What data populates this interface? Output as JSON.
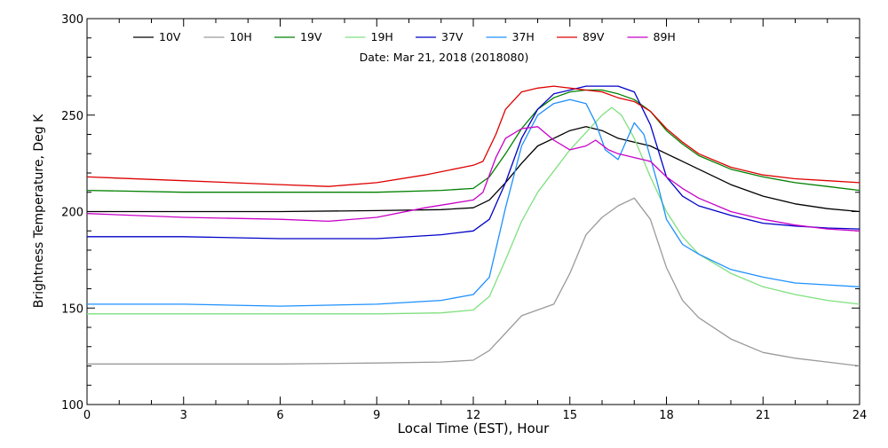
{
  "chart_data": {
    "type": "line",
    "subtitle": "Date: Mar 21, 2018 (2018080)",
    "xlabel": "Local Time (EST), Hour",
    "ylabel": "Brightness Temperature, Deg K",
    "xlim": [
      0,
      24
    ],
    "ylim": [
      100,
      300
    ],
    "x_ticks": [
      0,
      3,
      6,
      9,
      12,
      15,
      18,
      21,
      24
    ],
    "x_tick_labels": [
      "0",
      "3",
      "6",
      "9",
      "12",
      "15",
      "18",
      "21",
      "24"
    ],
    "y_ticks": [
      100,
      150,
      200,
      250,
      300
    ],
    "y_tick_labels": [
      "100",
      "150",
      "200",
      "250",
      "300"
    ],
    "grid": false,
    "legend_position": "top",
    "series": [
      {
        "name": "10V",
        "color": "#000000",
        "points": [
          [
            0,
            200
          ],
          [
            3,
            200
          ],
          [
            6,
            200
          ],
          [
            9,
            200.5
          ],
          [
            11,
            201
          ],
          [
            12,
            202
          ],
          [
            12.5,
            206
          ],
          [
            13,
            215
          ],
          [
            13.5,
            225
          ],
          [
            14,
            234
          ],
          [
            14.5,
            238
          ],
          [
            15,
            242
          ],
          [
            15.5,
            244
          ],
          [
            16,
            242
          ],
          [
            16.5,
            238
          ],
          [
            17,
            236
          ],
          [
            17.5,
            234
          ],
          [
            18,
            230
          ],
          [
            18.5,
            226
          ],
          [
            19,
            222
          ],
          [
            20,
            214
          ],
          [
            21,
            208
          ],
          [
            22,
            204
          ],
          [
            23,
            201.5
          ],
          [
            24,
            200
          ]
        ]
      },
      {
        "name": "10H",
        "color": "#9a9a9a",
        "points": [
          [
            0,
            121
          ],
          [
            3,
            121
          ],
          [
            6,
            121
          ],
          [
            9,
            121.5
          ],
          [
            11,
            122
          ],
          [
            12,
            123
          ],
          [
            12.5,
            128
          ],
          [
            13,
            137
          ],
          [
            13.5,
            146
          ],
          [
            14,
            149
          ],
          [
            14.5,
            152
          ],
          [
            15,
            168
          ],
          [
            15.5,
            188
          ],
          [
            16,
            197
          ],
          [
            16.5,
            203
          ],
          [
            17,
            207
          ],
          [
            17.5,
            196
          ],
          [
            18,
            171
          ],
          [
            18.5,
            154
          ],
          [
            19,
            145
          ],
          [
            20,
            134
          ],
          [
            21,
            127
          ],
          [
            22,
            124
          ],
          [
            23,
            122
          ],
          [
            24,
            120
          ]
        ]
      },
      {
        "name": "19V",
        "color": "#008000",
        "points": [
          [
            0,
            211
          ],
          [
            3,
            210
          ],
          [
            6,
            210
          ],
          [
            9,
            210
          ],
          [
            11,
            211
          ],
          [
            12,
            212
          ],
          [
            12.5,
            218
          ],
          [
            13,
            230
          ],
          [
            13.5,
            243
          ],
          [
            14,
            253
          ],
          [
            14.5,
            259
          ],
          [
            15,
            262
          ],
          [
            15.5,
            263
          ],
          [
            16,
            263
          ],
          [
            16.5,
            261
          ],
          [
            17,
            258
          ],
          [
            17.5,
            252
          ],
          [
            18,
            242
          ],
          [
            18.5,
            235
          ],
          [
            19,
            229
          ],
          [
            20,
            222
          ],
          [
            21,
            218
          ],
          [
            22,
            215
          ],
          [
            23,
            213
          ],
          [
            24,
            211
          ]
        ]
      },
      {
        "name": "19H",
        "color": "#7fe07f",
        "points": [
          [
            0,
            147
          ],
          [
            3,
            147
          ],
          [
            6,
            147
          ],
          [
            9,
            147
          ],
          [
            11,
            147.5
          ],
          [
            12,
            149
          ],
          [
            12.5,
            156
          ],
          [
            13,
            175
          ],
          [
            13.5,
            195
          ],
          [
            14,
            210
          ],
          [
            14.5,
            221
          ],
          [
            15,
            232
          ],
          [
            15.5,
            241
          ],
          [
            16,
            250
          ],
          [
            16.3,
            254
          ],
          [
            16.6,
            250
          ],
          [
            17,
            238
          ],
          [
            17.5,
            218
          ],
          [
            18,
            200
          ],
          [
            18.5,
            187
          ],
          [
            19,
            178
          ],
          [
            20,
            168
          ],
          [
            21,
            161
          ],
          [
            22,
            157
          ],
          [
            23,
            154
          ],
          [
            24,
            152
          ]
        ]
      },
      {
        "name": "37V",
        "color": "#0000c8",
        "points": [
          [
            0,
            187
          ],
          [
            3,
            187
          ],
          [
            6,
            186
          ],
          [
            9,
            186
          ],
          [
            11,
            188
          ],
          [
            12,
            190
          ],
          [
            12.5,
            196
          ],
          [
            13,
            215
          ],
          [
            13.5,
            238
          ],
          [
            14,
            253
          ],
          [
            14.5,
            261
          ],
          [
            15,
            263
          ],
          [
            15.5,
            265
          ],
          [
            16,
            265
          ],
          [
            16.5,
            265
          ],
          [
            17,
            262
          ],
          [
            17.5,
            245
          ],
          [
            18,
            218
          ],
          [
            18.5,
            208
          ],
          [
            19,
            203
          ],
          [
            20,
            198
          ],
          [
            21,
            194
          ],
          [
            22,
            192.5
          ],
          [
            23,
            191.5
          ],
          [
            24,
            191
          ]
        ]
      },
      {
        "name": "37H",
        "color": "#1e90ff",
        "points": [
          [
            0,
            152
          ],
          [
            3,
            152
          ],
          [
            6,
            151
          ],
          [
            9,
            152
          ],
          [
            11,
            154
          ],
          [
            12,
            157
          ],
          [
            12.5,
            166
          ],
          [
            13,
            202
          ],
          [
            13.5,
            234
          ],
          [
            14,
            250
          ],
          [
            14.5,
            256
          ],
          [
            15,
            258
          ],
          [
            15.5,
            256
          ],
          [
            15.8,
            246
          ],
          [
            16.1,
            232
          ],
          [
            16.5,
            227
          ],
          [
            17,
            246
          ],
          [
            17.3,
            240
          ],
          [
            17.7,
            216
          ],
          [
            18,
            196
          ],
          [
            18.5,
            183
          ],
          [
            19,
            178
          ],
          [
            20,
            170
          ],
          [
            21,
            166
          ],
          [
            22,
            163
          ],
          [
            23,
            162
          ],
          [
            24,
            161
          ]
        ]
      },
      {
        "name": "89V",
        "color": "#dd0000",
        "points": [
          [
            0,
            218
          ],
          [
            3,
            216
          ],
          [
            6,
            214
          ],
          [
            7.5,
            213
          ],
          [
            9,
            215
          ],
          [
            10.5,
            219
          ],
          [
            12,
            224
          ],
          [
            12.3,
            226
          ],
          [
            12.7,
            240
          ],
          [
            13,
            253
          ],
          [
            13.5,
            262
          ],
          [
            14,
            264
          ],
          [
            14.5,
            265
          ],
          [
            15,
            264
          ],
          [
            15.5,
            263
          ],
          [
            16,
            262
          ],
          [
            16.5,
            259
          ],
          [
            17,
            257
          ],
          [
            17.5,
            252
          ],
          [
            18,
            243
          ],
          [
            18.5,
            236
          ],
          [
            19,
            230
          ],
          [
            20,
            223
          ],
          [
            21,
            219
          ],
          [
            22,
            217
          ],
          [
            23,
            216
          ],
          [
            24,
            215
          ]
        ]
      },
      {
        "name": "89H",
        "color": "#c800c8",
        "points": [
          [
            0,
            199
          ],
          [
            3,
            197
          ],
          [
            6,
            196
          ],
          [
            7.5,
            195
          ],
          [
            9,
            197
          ],
          [
            10.5,
            202
          ],
          [
            12,
            206
          ],
          [
            12.3,
            210
          ],
          [
            12.7,
            228
          ],
          [
            13,
            238
          ],
          [
            13.5,
            243
          ],
          [
            14,
            244
          ],
          [
            14.5,
            237
          ],
          [
            15,
            232
          ],
          [
            15.5,
            234
          ],
          [
            15.8,
            237
          ],
          [
            16.2,
            232
          ],
          [
            16.5,
            230
          ],
          [
            17,
            228
          ],
          [
            17.5,
            226
          ],
          [
            18,
            218
          ],
          [
            18.5,
            212
          ],
          [
            19,
            207
          ],
          [
            20,
            200
          ],
          [
            21,
            196
          ],
          [
            22,
            193
          ],
          [
            23,
            191
          ],
          [
            24,
            190
          ]
        ]
      }
    ]
  }
}
